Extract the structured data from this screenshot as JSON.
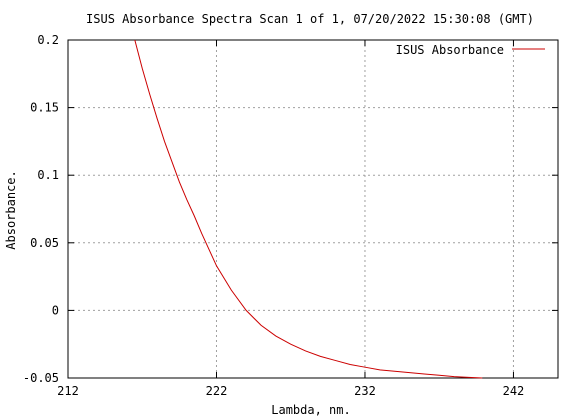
{
  "chart_data": {
    "type": "line",
    "title": "ISUS Absorbance Spectra Scan 1 of 1, 07/20/2022 15:30:08 (GMT)",
    "xlabel": "Lambda, nm.",
    "ylabel": "Absorbance.",
    "xlim": [
      212,
      245
    ],
    "ylim": [
      -0.05,
      0.2
    ],
    "xticks": [
      212,
      222,
      232,
      242
    ],
    "xtick_labels": [
      "212",
      "222",
      "232",
      "242"
    ],
    "yticks": [
      -0.05,
      0,
      0.05,
      0.1,
      0.15,
      0.2
    ],
    "ytick_labels": [
      "-0.05",
      "0",
      "0.05",
      "0.1",
      "0.15",
      "0.2"
    ],
    "grid": true,
    "legend_position": "top-right",
    "series": [
      {
        "name": "ISUS Absorbance",
        "color": "#cc0000",
        "x": [
          216.5,
          217,
          217.5,
          218,
          218.5,
          219,
          219.5,
          220,
          220.5,
          221,
          221.5,
          222,
          223,
          224,
          225,
          226,
          227,
          228,
          229,
          230,
          231,
          232,
          233,
          234,
          235,
          236,
          237,
          238,
          239,
          239.9
        ],
        "y": [
          0.2,
          0.179,
          0.16,
          0.142,
          0.125,
          0.11,
          0.095,
          0.082,
          0.07,
          0.057,
          0.045,
          0.033,
          0.015,
          0.0,
          -0.011,
          -0.019,
          -0.025,
          -0.03,
          -0.034,
          -0.037,
          -0.04,
          -0.042,
          -0.044,
          -0.045,
          -0.046,
          -0.047,
          -0.048,
          -0.049,
          -0.0495,
          -0.05
        ]
      }
    ]
  },
  "colors": {
    "background": "#ffffff",
    "axis": "#000000",
    "grid": "#a0a0a0",
    "series": "#cc0000"
  }
}
